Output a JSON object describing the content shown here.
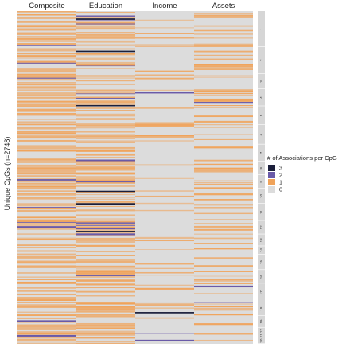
{
  "chart_data": {
    "type": "heatmap",
    "columns": [
      "Composite",
      "Education",
      "Income",
      "Assets"
    ],
    "ylabel": "Unique CpGs (n=2748)",
    "chromosome_labels": [
      "1",
      "2",
      "3",
      "4",
      "5",
      "6",
      "7",
      "8",
      "9",
      "10",
      "11",
      "12",
      "13",
      "14",
      "15",
      "16",
      "17",
      "18",
      "19",
      "20 21 22"
    ],
    "legend": {
      "title": "# of Associations per CpG",
      "placement": "right",
      "entries": [
        {
          "label": "3",
          "color": "#1b1f3b"
        },
        {
          "label": "2",
          "color": "#6a5aa8"
        },
        {
          "label": "1",
          "color": "#f0a35a"
        },
        {
          "label": "0",
          "color": "#dcdcdc"
        }
      ]
    },
    "column_density": {
      "Composite": {
        "p1": 0.58,
        "p2": 0.02,
        "p3": 0.0
      },
      "Education": {
        "p1": 0.5,
        "p2": 0.05,
        "p3": 0.02
      },
      "Income": {
        "p1": 0.12,
        "p2": 0.01,
        "p3": 0.003
      },
      "Assets": {
        "p1": 0.32,
        "p2": 0.01,
        "p3": 0.0
      }
    },
    "chromosome_proportions": [
      0.105,
      0.08,
      0.045,
      0.05,
      0.055,
      0.058,
      0.05,
      0.04,
      0.04,
      0.045,
      0.05,
      0.04,
      0.035,
      0.025,
      0.045,
      0.04,
      0.055,
      0.04,
      0.035,
      0.048
    ]
  }
}
